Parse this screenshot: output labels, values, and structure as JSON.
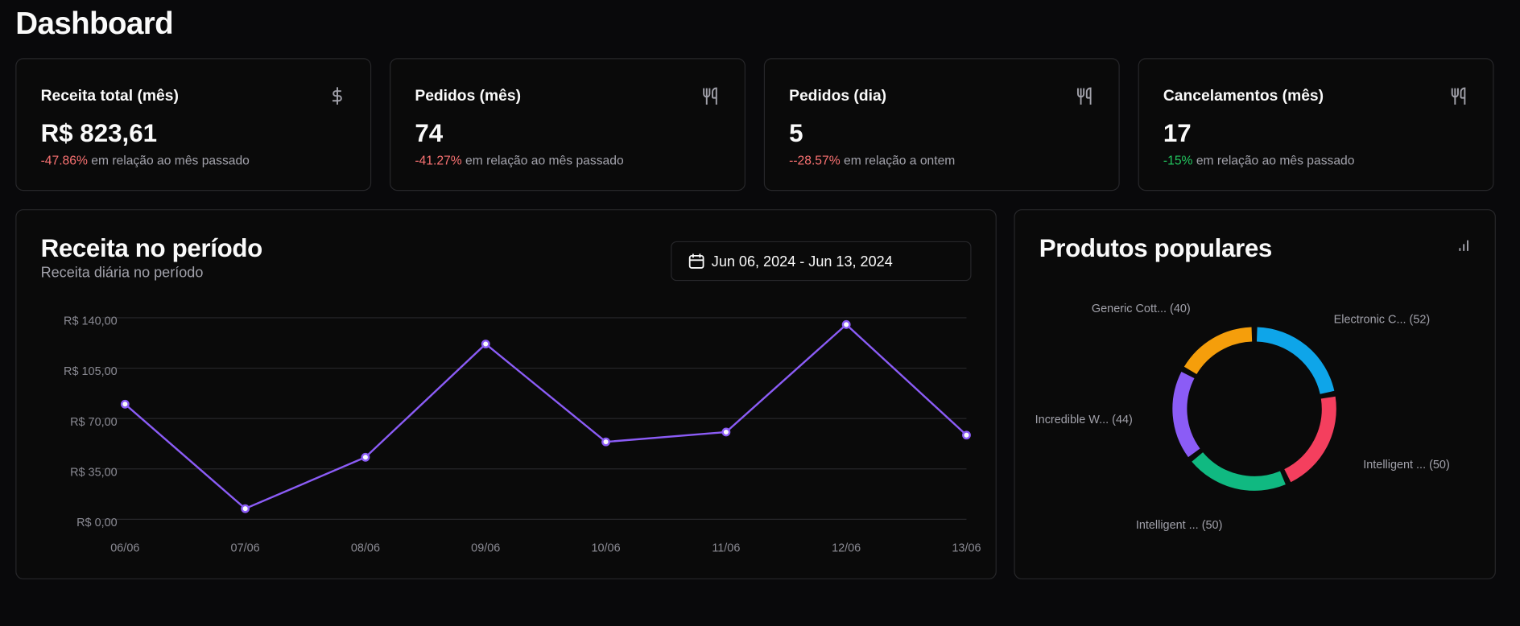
{
  "title": "Dashboard",
  "cards": [
    {
      "title": "Receita total (mês)",
      "value": "R$ 823,61",
      "change": "-47.86%",
      "change_color": "#f87171",
      "note": "em relação ao mês passado"
    },
    {
      "title": "Pedidos (mês)",
      "value": "74",
      "change": "-41.27%",
      "change_color": "#f87171",
      "note": "em relação ao mês passado"
    },
    {
      "title": "Pedidos (dia)",
      "value": "5",
      "change": "--28.57%",
      "change_color": "#f87171",
      "note": "em relação a ontem"
    },
    {
      "title": "Cancelamentos (mês)",
      "value": "17",
      "change": "-15%",
      "change_color": "#22c55e",
      "note": "em relação ao mês passado"
    }
  ],
  "chart_data": [
    {
      "type": "line",
      "title": "Receita no período",
      "subtitle": "Receita diária no período",
      "date_range": "Jun 06, 2024 - Jun 13, 2024",
      "categories": [
        "06/06",
        "07/06",
        "08/06",
        "09/06",
        "10/06",
        "11/06",
        "12/06",
        "13/06"
      ],
      "values": [
        80,
        7.4,
        43.1,
        121.8,
        53.8,
        60.6,
        135.3,
        58.5
      ],
      "color": "#8b5cf6",
      "ylim": [
        0,
        140
      ],
      "yticks": [
        {
          "value": 0,
          "label": "R$ 0,00"
        },
        {
          "value": 35,
          "label": "R$ 35,00"
        },
        {
          "value": 70,
          "label": "R$ 70,00"
        },
        {
          "value": 105,
          "label": "R$ 105,00"
        },
        {
          "value": 140,
          "label": "R$ 140,00"
        }
      ],
      "grid": true
    },
    {
      "type": "donut",
      "title": "Produtos populares",
      "categories": [
        "Electronic C... (52)",
        "Intelligent ... (50)",
        "Intelligent ... (50)",
        "Incredible W... (44)",
        "Generic Cott... (40)"
      ],
      "values": [
        52,
        50,
        50,
        44,
        40
      ],
      "colors": [
        "#0ea5e9",
        "#f43f5e",
        "#10b981",
        "#8b5cf6",
        "#f59e0b"
      ]
    }
  ]
}
